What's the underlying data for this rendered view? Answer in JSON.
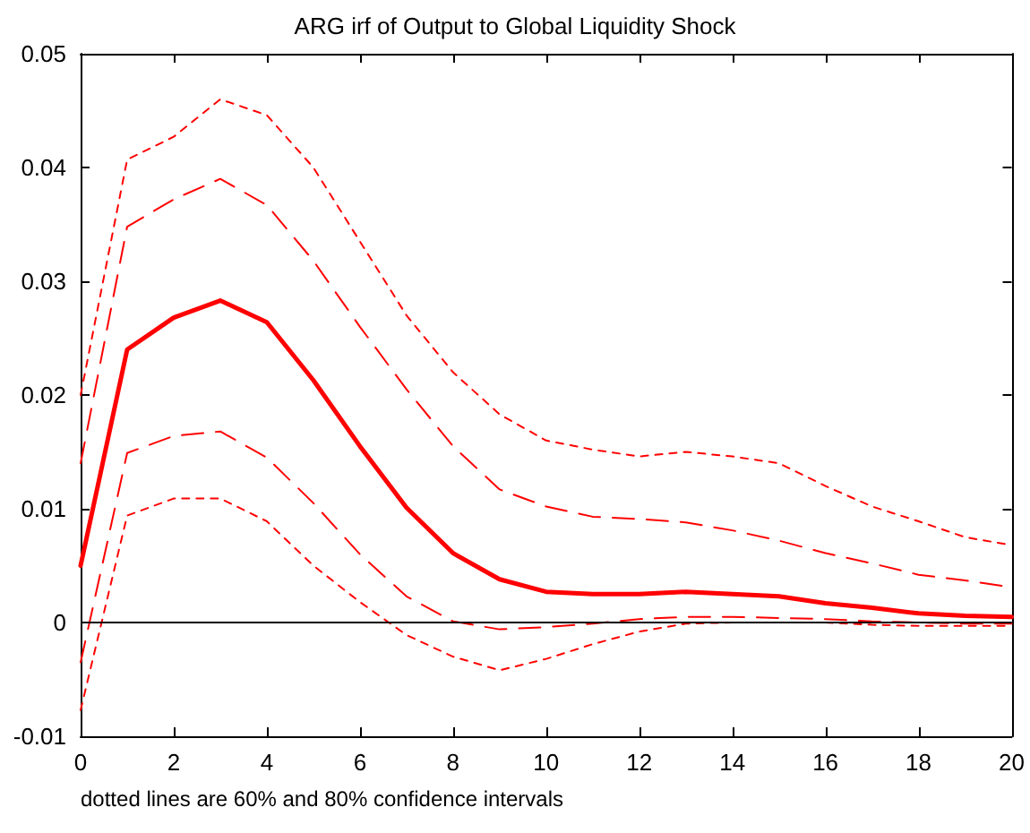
{
  "chart_data": {
    "type": "line",
    "title": "ARG irf of Output to Global Liquidity Shock",
    "x": [
      0,
      1,
      2,
      3,
      4,
      5,
      6,
      7,
      8,
      9,
      10,
      11,
      12,
      13,
      14,
      15,
      16,
      17,
      18,
      19,
      20
    ],
    "series": [
      {
        "color": "#ff0000",
        "line_style": "dotted",
        "values": [
          0.02,
          0.0407,
          0.0427,
          0.046,
          0.0446,
          0.04,
          0.0335,
          0.027,
          0.022,
          0.0183,
          0.016,
          0.0152,
          0.0146,
          0.015,
          0.0146,
          0.014,
          0.012,
          0.0102,
          0.0089,
          0.0075,
          0.0068
        ]
      },
      {
        "color": "#ff0000",
        "line_style": "dashed",
        "values": [
          0.014,
          0.0348,
          0.0372,
          0.039,
          0.0367,
          0.0318,
          0.026,
          0.0205,
          0.0155,
          0.0117,
          0.0102,
          0.0093,
          0.0091,
          0.0088,
          0.0081,
          0.0072,
          0.0061,
          0.0052,
          0.0042,
          0.0037,
          0.0031
        ]
      },
      {
        "color": "#ff0000",
        "line_style": "solid",
        "values": [
          0.005,
          0.024,
          0.0268,
          0.0283,
          0.0264,
          0.0213,
          0.0155,
          0.0101,
          0.0061,
          0.0038,
          0.0027,
          0.0025,
          0.0025,
          0.0027,
          0.0025,
          0.0023,
          0.0017,
          0.0013,
          0.0008,
          0.0006,
          0.0005
        ]
      },
      {
        "color": "#ff0000",
        "line_style": "dashed",
        "values": [
          -0.0035,
          0.0149,
          0.0164,
          0.0168,
          0.0145,
          0.0105,
          0.006,
          0.0023,
          0.0001,
          -0.0006,
          -0.0004,
          -0.0001,
          0.0003,
          0.0005,
          0.0005,
          0.0004,
          0.0003,
          0.0001,
          0,
          -0.0001,
          -0.0001
        ]
      },
      {
        "color": "#ff0000",
        "line_style": "dotted",
        "values": [
          -0.0077,
          0.0094,
          0.0109,
          0.0109,
          0.0089,
          0.005,
          0.0018,
          -0.0011,
          -0.003,
          -0.0042,
          -0.0032,
          -0.0019,
          -0.0008,
          -0.0001,
          0,
          0,
          0,
          -0.0002,
          -0.0003,
          -0.0003,
          -0.0003
        ]
      }
    ],
    "xlim": [
      0,
      20
    ],
    "xticks": [
      0,
      2,
      4,
      6,
      8,
      10,
      12,
      14,
      16,
      18,
      20
    ],
    "ylim": [
      -0.01,
      0.05
    ],
    "yticks": [
      -0.01,
      0,
      0.01,
      0.02,
      0.03,
      0.04,
      0.05
    ],
    "ref_lines": [
      {
        "axis": "y",
        "value": 0,
        "color": "#000000",
        "line_style": "solid"
      }
    ],
    "annotations": [
      "dotted lines are 60% and 80% confidence intervals"
    ],
    "grid": false,
    "marker": "none"
  }
}
